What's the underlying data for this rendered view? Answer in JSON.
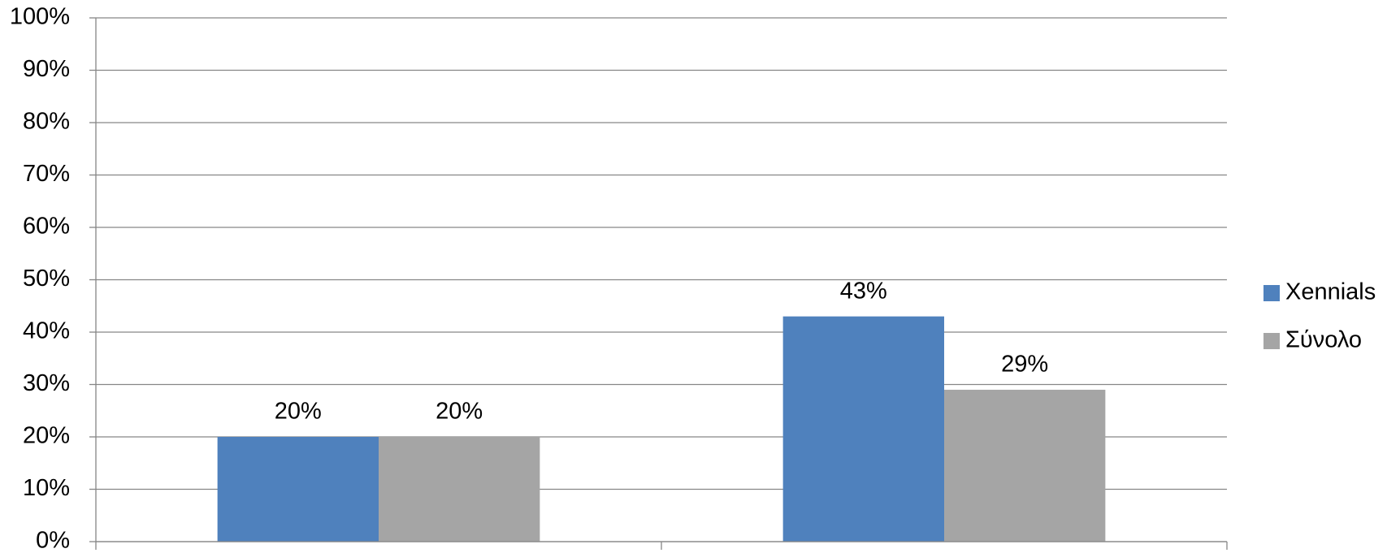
{
  "chart_data": {
    "type": "bar",
    "categories": [
      null,
      null
    ],
    "series": [
      {
        "name": "Xennials",
        "color": "#4f81bd",
        "values": [
          20,
          43
        ],
        "value_labels": [
          "20%",
          "43%"
        ]
      },
      {
        "name": "Σύνολο",
        "color": "#a5a5a5",
        "values": [
          20,
          29
        ],
        "value_labels": [
          "20%",
          "29%"
        ]
      }
    ],
    "ylim": [
      0,
      100
    ],
    "yticks": [
      {
        "value": 0,
        "label": "0%"
      },
      {
        "value": 10,
        "label": "10%"
      },
      {
        "value": 20,
        "label": "20%"
      },
      {
        "value": 30,
        "label": "30%"
      },
      {
        "value": 40,
        "label": "40%"
      },
      {
        "value": 50,
        "label": "50%"
      },
      {
        "value": 60,
        "label": "60%"
      },
      {
        "value": 70,
        "label": "70%"
      },
      {
        "value": 80,
        "label": "80%"
      },
      {
        "value": 90,
        "label": "90%"
      },
      {
        "value": 100,
        "label": "100%"
      }
    ],
    "grid": true,
    "legend": "right"
  }
}
